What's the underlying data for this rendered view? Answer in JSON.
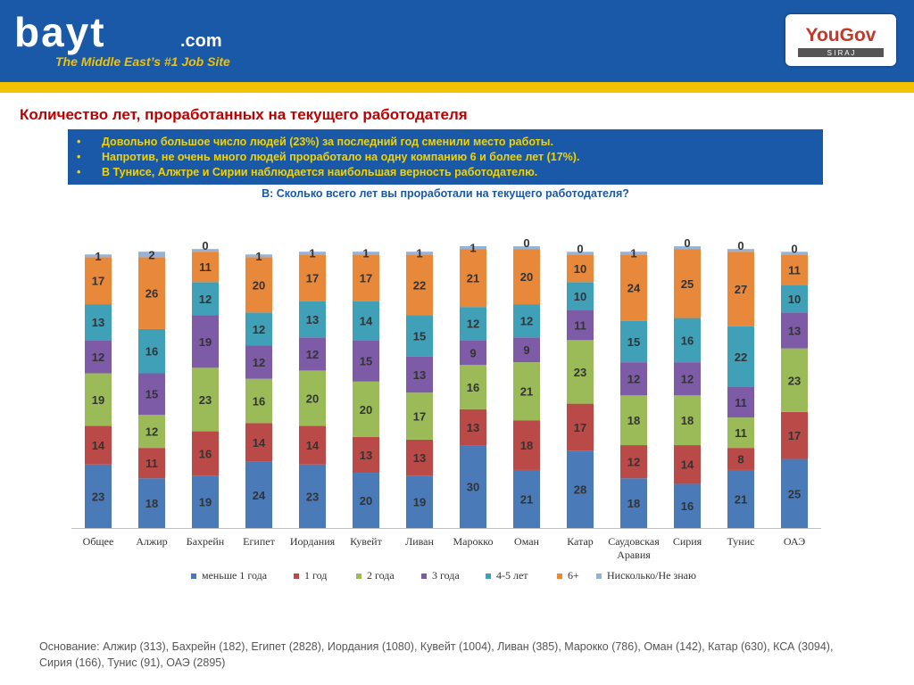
{
  "header": {
    "logo_text": "bayt",
    "logo_suffix": ".com",
    "tagline": "The Middle East’s #1 Job Site",
    "partner_logo_main": "YouGov",
    "partner_logo_sub": "S I R A J",
    "colors": {
      "header_bg": "#1a58a8",
      "stripe": "#f2c200"
    }
  },
  "title": "Количество лет, проработанных на текущего работодателя",
  "summary": {
    "items": [
      "Довольно большое число людей (23%) за последний год сменили  место работы.",
      "Напротив, не очень много людей проработало на одну компанию 6 и более лет (17%).",
      "В Тунисе, Алжтре и Сирии наблюдается наибольшая верность работодателю."
    ],
    "bullet": "•"
  },
  "question": "В: Сколько всего лет вы проработали на текущего работодателя?",
  "chart_data": {
    "type": "bar",
    "stacked": true,
    "categories": [
      "Общее",
      "Алжир",
      "Бахрейн",
      "Египет",
      "Иордания",
      "Кувейт",
      "Ливан",
      "Марокко",
      "Оман",
      "Катар",
      "Саудовская Аравия",
      "Сирия",
      "Тунис",
      "ОАЭ"
    ],
    "series": [
      {
        "name": "меньше 1 года",
        "color": "#4a7ab8",
        "values": [
          23,
          18,
          19,
          24,
          23,
          20,
          19,
          30,
          21,
          28,
          18,
          16,
          21,
          25
        ]
      },
      {
        "name": "1 год",
        "color": "#b94a48",
        "values": [
          14,
          11,
          16,
          14,
          14,
          13,
          13,
          13,
          18,
          17,
          12,
          14,
          8,
          17
        ]
      },
      {
        "name": "2 года",
        "color": "#9bbb59",
        "values": [
          19,
          12,
          23,
          16,
          20,
          20,
          17,
          16,
          21,
          23,
          18,
          18,
          11,
          23
        ]
      },
      {
        "name": "3 года",
        "color": "#7d5ba6",
        "values": [
          12,
          15,
          19,
          12,
          12,
          15,
          13,
          9,
          9,
          11,
          12,
          12,
          11,
          13
        ]
      },
      {
        "name": "4-5 лет",
        "color": "#3fa0b8",
        "values": [
          13,
          16,
          12,
          12,
          13,
          14,
          15,
          12,
          12,
          10,
          15,
          16,
          22,
          10
        ]
      },
      {
        "name": "6+",
        "color": "#e8883a",
        "values": [
          17,
          26,
          11,
          20,
          17,
          17,
          22,
          21,
          20,
          10,
          24,
          25,
          27,
          11
        ]
      },
      {
        "name": "Нисколько/Не знаю",
        "color": "#95b3d7",
        "values": [
          1,
          2,
          0,
          1,
          1,
          1,
          1,
          1,
          0,
          0,
          1,
          0,
          0,
          0
        ]
      }
    ],
    "legend_position": "bottom",
    "grid": false
  },
  "footnote": "Основание:  Алжир (313), Бахрейн (182), Египет (2828), Иордания (1080), Кувейт (1004), Ливан (385), Марокко (786), Оман (142), Катар (630),  КСА (3094), Сирия (166), Тунис (91), ОАЭ (2895)"
}
